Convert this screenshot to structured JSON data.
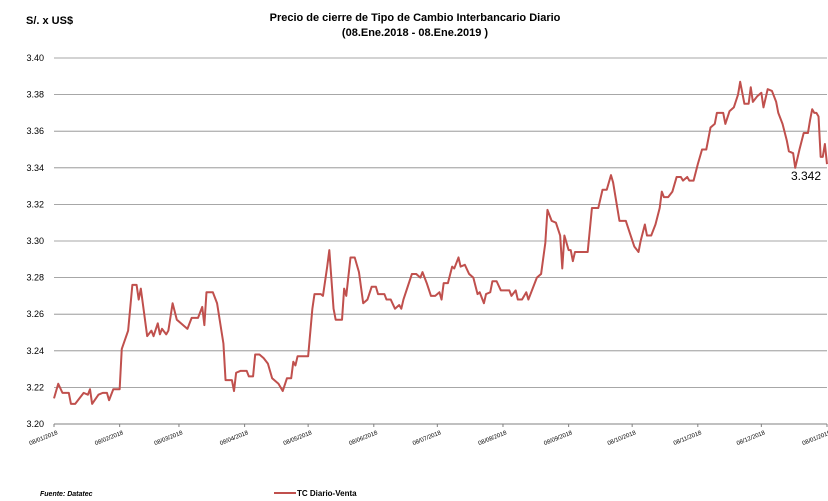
{
  "chart_data": {
    "type": "line",
    "title": "Precio de cierre de Tipo de Cambio Interbancario Diario",
    "subtitle": "(08.Ene.2018 - 08.Ene.2019 )",
    "ylabel": "S/. x US$",
    "ylim": [
      3.2,
      3.4
    ],
    "yticks": [
      "3.20",
      "3.22",
      "3.24",
      "3.26",
      "3.28",
      "3.30",
      "3.32",
      "3.34",
      "3.36",
      "3.38",
      "3.40"
    ],
    "xlim": [
      "2018-01-08",
      "2019-01-08"
    ],
    "xticks": [
      {
        "date": "2018-01-08",
        "label": "08/01/2018"
      },
      {
        "date": "2018-02-08",
        "label": "08/02/2018"
      },
      {
        "date": "2018-03-08",
        "label": "08/03/2018"
      },
      {
        "date": "2018-04-08",
        "label": "08/04/2018"
      },
      {
        "date": "2018-05-08",
        "label": "08/05/2018"
      },
      {
        "date": "2018-06-08",
        "label": "08/06/2018"
      },
      {
        "date": "2018-07-08",
        "label": "08/07/2018"
      },
      {
        "date": "2018-08-08",
        "label": "08/08/2018"
      },
      {
        "date": "2018-09-08",
        "label": "08/09/2018"
      },
      {
        "date": "2018-10-08",
        "label": "08/10/2018"
      },
      {
        "date": "2018-11-08",
        "label": "08/11/2018"
      },
      {
        "date": "2018-12-08",
        "label": "08/12/2018"
      },
      {
        "date": "2019-01-08",
        "label": "08/01/2019"
      }
    ],
    "grid": true,
    "legend_position": "bottom",
    "series": [
      {
        "name": "TC Diario-Venta",
        "color": "#c0504d",
        "points": [
          [
            "2018-01-08",
            3.214
          ],
          [
            "2018-01-10",
            3.222
          ],
          [
            "2018-01-12",
            3.217
          ],
          [
            "2018-01-15",
            3.217
          ],
          [
            "2018-01-16",
            3.211
          ],
          [
            "2018-01-18",
            3.211
          ],
          [
            "2018-01-22",
            3.217
          ],
          [
            "2018-01-24",
            3.216
          ],
          [
            "2018-01-25",
            3.219
          ],
          [
            "2018-01-26",
            3.211
          ],
          [
            "2018-01-29",
            3.216
          ],
          [
            "2018-01-31",
            3.217
          ],
          [
            "2018-02-02",
            3.217
          ],
          [
            "2018-02-03",
            3.213
          ],
          [
            "2018-02-05",
            3.219
          ],
          [
            "2018-02-08",
            3.219
          ],
          [
            "2018-02-09",
            3.241
          ],
          [
            "2018-02-12",
            3.251
          ],
          [
            "2018-02-14",
            3.276
          ],
          [
            "2018-02-16",
            3.276
          ],
          [
            "2018-02-17",
            3.268
          ],
          [
            "2018-02-18",
            3.274
          ],
          [
            "2018-02-21",
            3.248
          ],
          [
            "2018-02-23",
            3.251
          ],
          [
            "2018-02-24",
            3.248
          ],
          [
            "2018-02-26",
            3.255
          ],
          [
            "2018-02-27",
            3.249
          ],
          [
            "2018-02-28",
            3.252
          ],
          [
            "2018-03-02",
            3.249
          ],
          [
            "2018-03-03",
            3.251
          ],
          [
            "2018-03-05",
            3.266
          ],
          [
            "2018-03-07",
            3.257
          ],
          [
            "2018-03-09",
            3.255
          ],
          [
            "2018-03-12",
            3.252
          ],
          [
            "2018-03-14",
            3.258
          ],
          [
            "2018-03-17",
            3.258
          ],
          [
            "2018-03-19",
            3.264
          ],
          [
            "2018-03-20",
            3.254
          ],
          [
            "2018-03-21",
            3.272
          ],
          [
            "2018-03-24",
            3.272
          ],
          [
            "2018-03-26",
            3.266
          ],
          [
            "2018-03-29",
            3.244
          ],
          [
            "2018-03-30",
            3.224
          ],
          [
            "2018-04-02",
            3.224
          ],
          [
            "2018-04-03",
            3.218
          ],
          [
            "2018-04-04",
            3.228
          ],
          [
            "2018-04-06",
            3.229
          ],
          [
            "2018-04-09",
            3.229
          ],
          [
            "2018-04-10",
            3.226
          ],
          [
            "2018-04-12",
            3.226
          ],
          [
            "2018-04-13",
            3.238
          ],
          [
            "2018-04-15",
            3.238
          ],
          [
            "2018-04-17",
            3.236
          ],
          [
            "2018-04-19",
            3.233
          ],
          [
            "2018-04-21",
            3.225
          ],
          [
            "2018-04-24",
            3.222
          ],
          [
            "2018-04-26",
            3.218
          ],
          [
            "2018-04-28",
            3.225
          ],
          [
            "2018-04-30",
            3.225
          ],
          [
            "2018-05-01",
            3.234
          ],
          [
            "2018-05-02",
            3.232
          ],
          [
            "2018-05-03",
            3.237
          ],
          [
            "2018-05-05",
            3.237
          ],
          [
            "2018-05-08",
            3.237
          ],
          [
            "2018-05-10",
            3.263
          ],
          [
            "2018-05-11",
            3.271
          ],
          [
            "2018-05-14",
            3.271
          ],
          [
            "2018-05-15",
            3.27
          ],
          [
            "2018-05-17",
            3.286
          ],
          [
            "2018-05-18",
            3.295
          ],
          [
            "2018-05-20",
            3.263
          ],
          [
            "2018-05-21",
            3.257
          ],
          [
            "2018-05-24",
            3.257
          ],
          [
            "2018-05-25",
            3.274
          ],
          [
            "2018-05-26",
            3.27
          ],
          [
            "2018-05-28",
            3.291
          ],
          [
            "2018-05-30",
            3.291
          ],
          [
            "2018-06-01",
            3.283
          ],
          [
            "2018-06-03",
            3.266
          ],
          [
            "2018-06-05",
            3.268
          ],
          [
            "2018-06-07",
            3.275
          ],
          [
            "2018-06-09",
            3.275
          ],
          [
            "2018-06-10",
            3.271
          ],
          [
            "2018-06-13",
            3.271
          ],
          [
            "2018-06-14",
            3.268
          ],
          [
            "2018-06-16",
            3.268
          ],
          [
            "2018-06-18",
            3.263
          ],
          [
            "2018-06-20",
            3.265
          ],
          [
            "2018-06-21",
            3.263
          ],
          [
            "2018-06-22",
            3.268
          ],
          [
            "2018-06-24",
            3.275
          ],
          [
            "2018-06-26",
            3.282
          ],
          [
            "2018-06-28",
            3.282
          ],
          [
            "2018-06-30",
            3.28
          ],
          [
            "2018-07-01",
            3.283
          ],
          [
            "2018-07-03",
            3.277
          ],
          [
            "2018-07-05",
            3.27
          ],
          [
            "2018-07-07",
            3.27
          ],
          [
            "2018-07-09",
            3.272
          ],
          [
            "2018-07-10",
            3.268
          ],
          [
            "2018-07-11",
            3.277
          ],
          [
            "2018-07-13",
            3.277
          ],
          [
            "2018-07-15",
            3.286
          ],
          [
            "2018-07-16",
            3.285
          ],
          [
            "2018-07-18",
            3.291
          ],
          [
            "2018-07-19",
            3.286
          ],
          [
            "2018-07-21",
            3.287
          ],
          [
            "2018-07-23",
            3.282
          ],
          [
            "2018-07-25",
            3.28
          ],
          [
            "2018-07-27",
            3.271
          ],
          [
            "2018-07-28",
            3.272
          ],
          [
            "2018-07-30",
            3.266
          ],
          [
            "2018-07-31",
            3.271
          ],
          [
            "2018-08-02",
            3.272
          ],
          [
            "2018-08-03",
            3.278
          ],
          [
            "2018-08-05",
            3.278
          ],
          [
            "2018-08-07",
            3.273
          ],
          [
            "2018-08-09",
            3.273
          ],
          [
            "2018-08-11",
            3.273
          ],
          [
            "2018-08-12",
            3.27
          ],
          [
            "2018-08-14",
            3.273
          ],
          [
            "2018-08-15",
            3.268
          ],
          [
            "2018-08-17",
            3.268
          ],
          [
            "2018-08-19",
            3.272
          ],
          [
            "2018-08-20",
            3.268
          ],
          [
            "2018-08-22",
            3.274
          ],
          [
            "2018-08-24",
            3.28
          ],
          [
            "2018-08-26",
            3.282
          ],
          [
            "2018-08-28",
            3.299
          ],
          [
            "2018-08-29",
            3.317
          ],
          [
            "2018-08-31",
            3.311
          ],
          [
            "2018-09-02",
            3.31
          ],
          [
            "2018-09-04",
            3.303
          ],
          [
            "2018-09-05",
            3.285
          ],
          [
            "2018-09-06",
            3.303
          ],
          [
            "2018-09-08",
            3.295
          ],
          [
            "2018-09-09",
            3.295
          ],
          [
            "2018-09-10",
            3.289
          ],
          [
            "2018-09-11",
            3.294
          ],
          [
            "2018-09-15",
            3.294
          ],
          [
            "2018-09-17",
            3.294
          ],
          [
            "2018-09-19",
            3.318
          ],
          [
            "2018-09-22",
            3.318
          ],
          [
            "2018-09-24",
            3.328
          ],
          [
            "2018-09-26",
            3.328
          ],
          [
            "2018-09-28",
            3.336
          ],
          [
            "2018-09-29",
            3.332
          ],
          [
            "2018-10-01",
            3.318
          ],
          [
            "2018-10-02",
            3.311
          ],
          [
            "2018-10-05",
            3.311
          ],
          [
            "2018-10-07",
            3.304
          ],
          [
            "2018-10-09",
            3.297
          ],
          [
            "2018-10-11",
            3.294
          ],
          [
            "2018-10-12",
            3.3
          ],
          [
            "2018-10-14",
            3.309
          ],
          [
            "2018-10-15",
            3.303
          ],
          [
            "2018-10-17",
            3.303
          ],
          [
            "2018-10-19",
            3.309
          ],
          [
            "2018-10-21",
            3.318
          ],
          [
            "2018-10-22",
            3.327
          ],
          [
            "2018-10-23",
            3.324
          ],
          [
            "2018-10-25",
            3.324
          ],
          [
            "2018-10-27",
            3.327
          ],
          [
            "2018-10-29",
            3.335
          ],
          [
            "2018-10-31",
            3.335
          ],
          [
            "2018-11-01",
            3.333
          ],
          [
            "2018-11-03",
            3.335
          ],
          [
            "2018-11-04",
            3.333
          ],
          [
            "2018-11-06",
            3.333
          ],
          [
            "2018-11-08",
            3.342
          ],
          [
            "2018-11-10",
            3.35
          ],
          [
            "2018-11-12",
            3.35
          ],
          [
            "2018-11-14",
            3.362
          ],
          [
            "2018-11-16",
            3.364
          ],
          [
            "2018-11-17",
            3.37
          ],
          [
            "2018-11-20",
            3.37
          ],
          [
            "2018-11-21",
            3.364
          ],
          [
            "2018-11-23",
            3.371
          ],
          [
            "2018-11-25",
            3.373
          ],
          [
            "2018-11-27",
            3.38
          ],
          [
            "2018-11-28",
            3.387
          ],
          [
            "2018-11-30",
            3.375
          ],
          [
            "2018-12-02",
            3.375
          ],
          [
            "2018-12-03",
            3.384
          ],
          [
            "2018-12-04",
            3.376
          ],
          [
            "2018-12-06",
            3.379
          ],
          [
            "2018-12-08",
            3.381
          ],
          [
            "2018-12-09",
            3.373
          ],
          [
            "2018-12-11",
            3.383
          ],
          [
            "2018-12-13",
            3.382
          ],
          [
            "2018-12-15",
            3.376
          ],
          [
            "2018-12-16",
            3.37
          ],
          [
            "2018-12-18",
            3.364
          ],
          [
            "2018-12-20",
            3.355
          ],
          [
            "2018-12-21",
            3.349
          ],
          [
            "2018-12-23",
            3.348
          ],
          [
            "2018-12-24",
            3.34
          ],
          [
            "2018-12-26",
            3.35
          ],
          [
            "2018-12-28",
            3.359
          ],
          [
            "2018-12-30",
            3.359
          ],
          [
            "2018-12-31",
            3.366
          ],
          [
            "2019-01-01",
            3.372
          ],
          [
            "2019-01-02",
            3.37
          ],
          [
            "2019-01-03",
            3.37
          ],
          [
            "2019-01-04",
            3.368
          ],
          [
            "2019-01-05",
            3.346
          ],
          [
            "2019-01-06",
            3.346
          ],
          [
            "2019-01-07",
            3.353
          ],
          [
            "2019-01-08",
            3.342
          ]
        ]
      }
    ],
    "annotations": [
      {
        "text": "3.342",
        "date": "2019-01-08",
        "value": 3.342
      }
    ],
    "source": "Fuente: Datatec"
  }
}
